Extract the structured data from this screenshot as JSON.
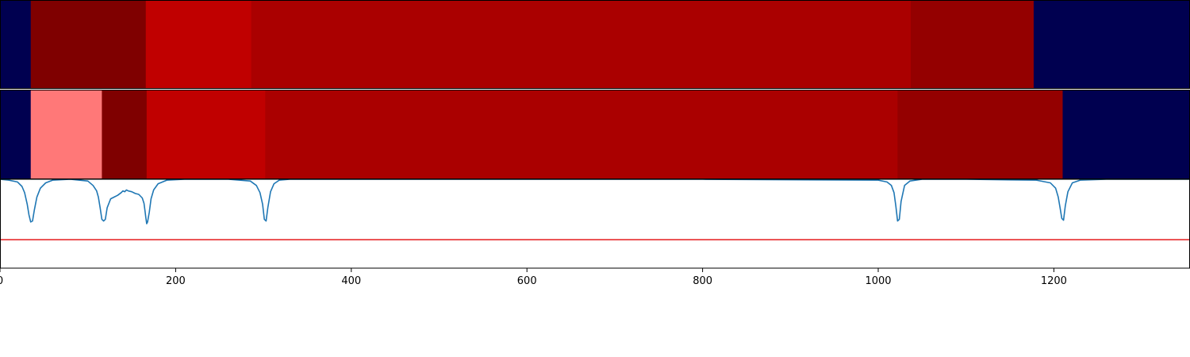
{
  "chart_data": [
    {
      "type": "heatmap",
      "title": "",
      "xlim": [
        0,
        1355
      ],
      "segments": [
        {
          "start": 0,
          "end": 35,
          "color": "#000050"
        },
        {
          "start": 35,
          "end": 166,
          "color": "#7f0000"
        },
        {
          "start": 166,
          "end": 286,
          "color": "#c00000"
        },
        {
          "start": 286,
          "end": 1037,
          "color": "#aa0000"
        },
        {
          "start": 1037,
          "end": 1177,
          "color": "#940000"
        },
        {
          "start": 1177,
          "end": 1355,
          "color": "#000050"
        }
      ]
    },
    {
      "type": "heatmap",
      "title": "",
      "xlim": [
        0,
        1355
      ],
      "segments": [
        {
          "start": 0,
          "end": 35,
          "color": "#000050"
        },
        {
          "start": 35,
          "end": 116,
          "color": "#ff7878"
        },
        {
          "start": 116,
          "end": 167,
          "color": "#7f0000"
        },
        {
          "start": 167,
          "end": 302,
          "color": "#c00000"
        },
        {
          "start": 302,
          "end": 1022,
          "color": "#aa0000"
        },
        {
          "start": 1022,
          "end": 1210,
          "color": "#940000"
        },
        {
          "start": 1210,
          "end": 1355,
          "color": "#000050"
        }
      ]
    },
    {
      "type": "line",
      "title": "",
      "xlabel": "",
      "ylabel": "",
      "xlim": [
        0,
        1355
      ],
      "ylim": [
        0,
        1
      ],
      "threshold": {
        "value": 0.32,
        "color": "#e41a1c"
      },
      "series_color": "#1f77b4",
      "x": [
        0,
        10,
        20,
        25,
        28,
        31,
        33,
        35,
        37,
        39,
        42,
        46,
        52,
        60,
        80,
        100,
        106,
        110,
        112,
        114,
        116,
        118,
        120,
        122,
        126,
        130,
        134,
        138,
        140,
        142,
        144,
        146,
        150,
        154,
        158,
        162,
        164,
        165,
        166,
        167,
        168,
        170,
        172,
        175,
        180,
        190,
        210,
        260,
        285,
        292,
        296,
        299,
        301,
        303,
        305,
        308,
        312,
        318,
        330,
        400,
        600,
        800,
        1000,
        1010,
        1015,
        1018,
        1020,
        1022,
        1024,
        1026,
        1030,
        1036,
        1050,
        1100,
        1180,
        1196,
        1202,
        1205,
        1207,
        1209,
        1211,
        1213,
        1216,
        1221,
        1230,
        1260,
        1355
      ],
      "y": [
        1.0,
        0.99,
        0.97,
        0.92,
        0.85,
        0.72,
        0.6,
        0.52,
        0.53,
        0.65,
        0.8,
        0.9,
        0.96,
        0.99,
        1.0,
        0.98,
        0.93,
        0.87,
        0.8,
        0.68,
        0.55,
        0.53,
        0.55,
        0.68,
        0.78,
        0.8,
        0.82,
        0.85,
        0.87,
        0.86,
        0.88,
        0.87,
        0.86,
        0.84,
        0.83,
        0.79,
        0.73,
        0.65,
        0.57,
        0.5,
        0.52,
        0.63,
        0.78,
        0.88,
        0.95,
        0.99,
        1.0,
        1.0,
        0.98,
        0.93,
        0.85,
        0.72,
        0.55,
        0.53,
        0.68,
        0.86,
        0.95,
        0.99,
        1.0,
        1.0,
        1.0,
        1.0,
        0.99,
        0.97,
        0.93,
        0.85,
        0.7,
        0.53,
        0.55,
        0.75,
        0.93,
        0.98,
        1.0,
        1.0,
        0.99,
        0.96,
        0.9,
        0.8,
        0.68,
        0.56,
        0.54,
        0.7,
        0.86,
        0.96,
        0.99,
        1.0,
        1.0
      ]
    }
  ],
  "x_axis": {
    "ticks": [
      0,
      200,
      400,
      600,
      800,
      1000,
      1200
    ],
    "labels": [
      "0",
      "200",
      "400",
      "600",
      "800",
      "1000",
      "1200"
    ]
  }
}
